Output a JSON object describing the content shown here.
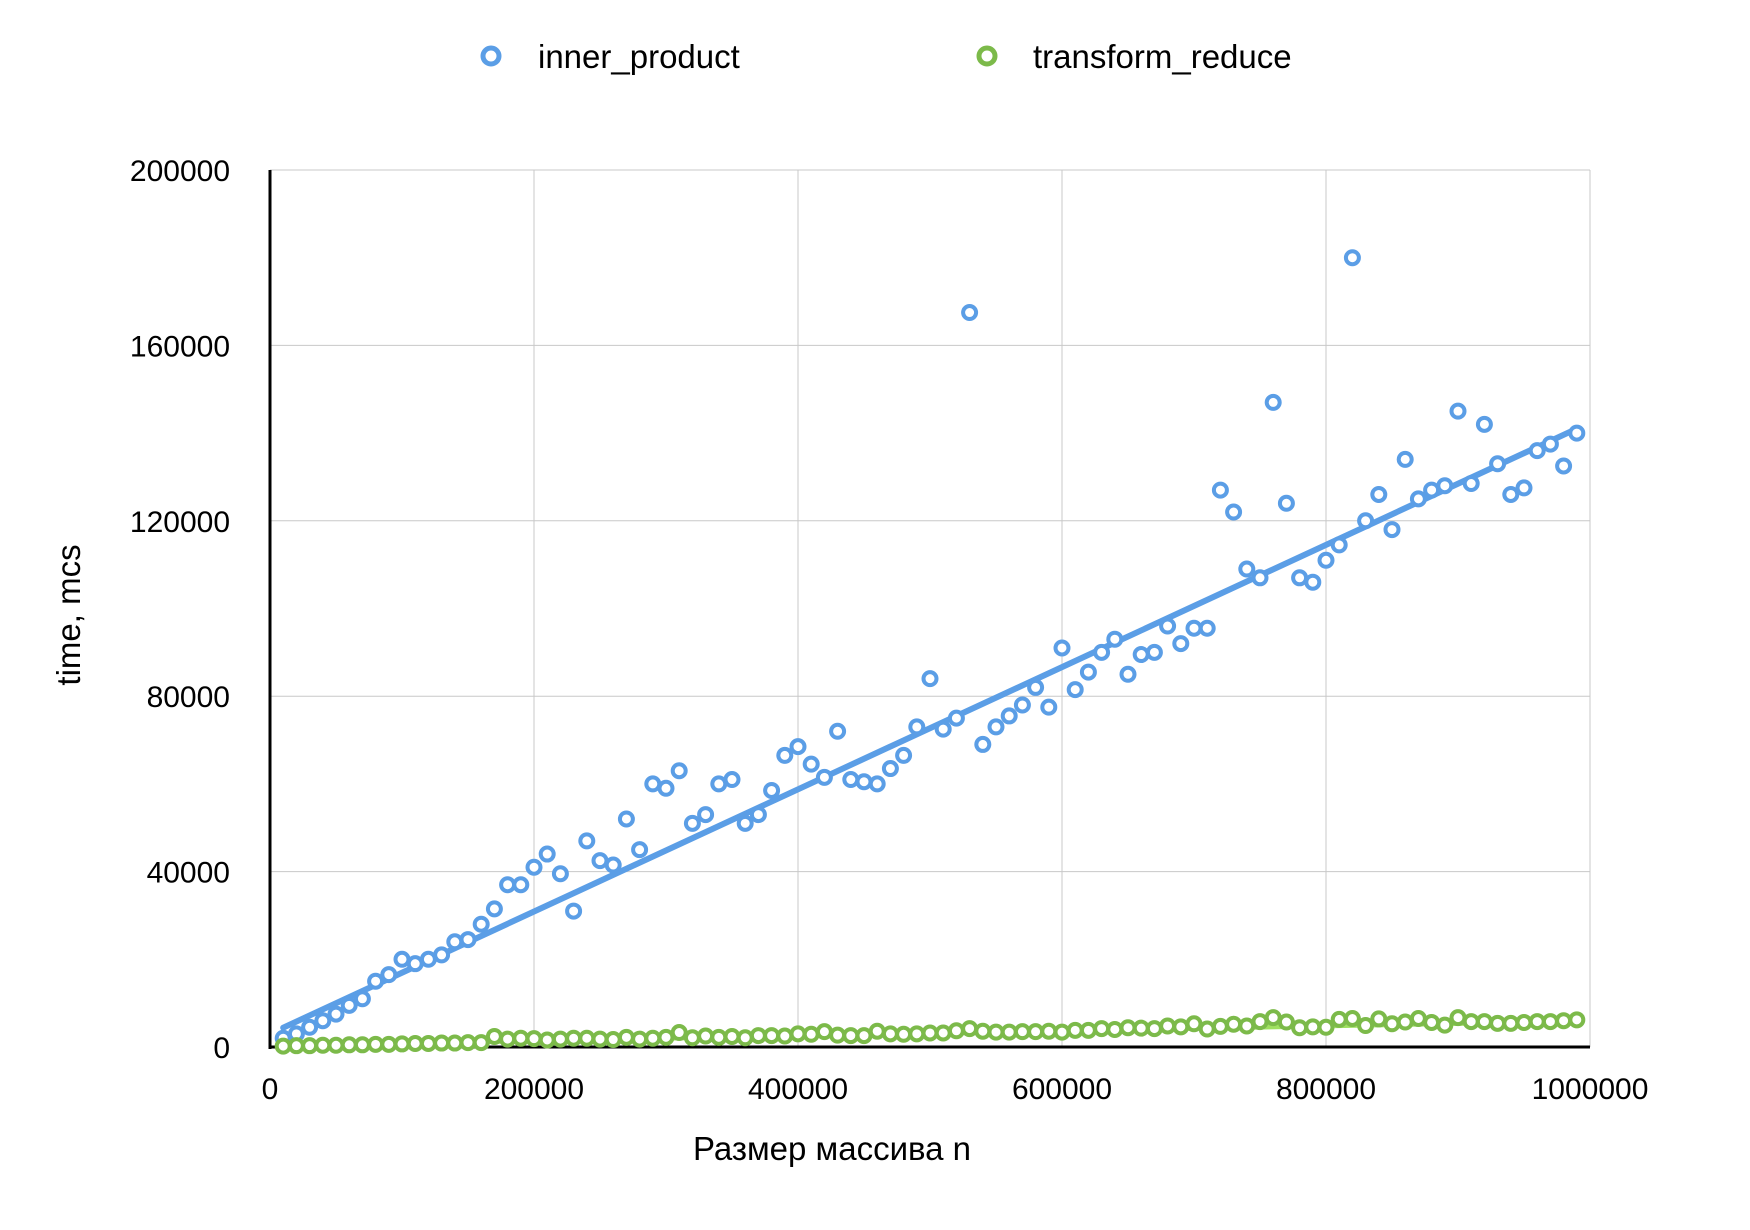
{
  "chart_data": {
    "type": "scatter",
    "xlabel": "Размер массива n",
    "ylabel": "time, mcs",
    "xlim": [
      0,
      1000000
    ],
    "ylim": [
      0,
      200000
    ],
    "x_ticks": [
      0,
      200000,
      400000,
      600000,
      800000,
      1000000
    ],
    "y_ticks": [
      0,
      40000,
      80000,
      120000,
      160000,
      200000
    ],
    "x_tick_labels": [
      "0",
      "200000",
      "400000",
      "600000",
      "800000",
      "1000000"
    ],
    "y_tick_labels": [
      "0",
      "40000",
      "80000",
      "120000",
      "160000",
      "200000"
    ],
    "grid": true,
    "legend_position": "top",
    "x": [
      10000,
      20000,
      30000,
      40000,
      50000,
      60000,
      70000,
      80000,
      90000,
      100000,
      110000,
      120000,
      130000,
      140000,
      150000,
      160000,
      170000,
      180000,
      190000,
      200000,
      210000,
      220000,
      230000,
      240000,
      250000,
      260000,
      270000,
      280000,
      290000,
      300000,
      310000,
      320000,
      330000,
      340000,
      350000,
      360000,
      370000,
      380000,
      390000,
      400000,
      410000,
      420000,
      430000,
      440000,
      450000,
      460000,
      470000,
      480000,
      490000,
      500000,
      510000,
      520000,
      530000,
      540000,
      550000,
      560000,
      570000,
      580000,
      590000,
      600000,
      610000,
      620000,
      630000,
      640000,
      650000,
      660000,
      670000,
      680000,
      690000,
      700000,
      710000,
      720000,
      730000,
      740000,
      750000,
      760000,
      770000,
      780000,
      790000,
      800000,
      810000,
      820000,
      830000,
      840000,
      850000,
      860000,
      870000,
      880000,
      890000,
      900000,
      910000,
      920000,
      930000,
      940000,
      950000,
      960000,
      970000,
      980000,
      990000
    ],
    "series": [
      {
        "name": "inner_product",
        "color": "#5b9ee6",
        "values": [
          2000,
          3000,
          4500,
          6000,
          7500,
          9500,
          11000,
          15000,
          16500,
          20000,
          19000,
          20000,
          21000,
          24000,
          24500,
          28000,
          31500,
          37000,
          37000,
          41000,
          44000,
          39500,
          31000,
          47000,
          42500,
          41500,
          52000,
          45000,
          60000,
          59000,
          63000,
          51000,
          53000,
          60000,
          61000,
          51000,
          53000,
          58500,
          66500,
          68500,
          64500,
          61500,
          72000,
          61000,
          60500,
          60000,
          63500,
          66500,
          73000,
          84000,
          72500,
          75000,
          167500,
          69000,
          73000,
          75500,
          78000,
          82000,
          77500,
          91000,
          81500,
          85500,
          90000,
          93000,
          85000,
          89500,
          90000,
          96000,
          92000,
          95500,
          95500,
          127000,
          122000,
          109000,
          107000,
          147000,
          124000,
          107000,
          106000,
          111000,
          114500,
          180000,
          120000,
          126000,
          118000,
          134000,
          125000,
          127000,
          128000,
          145000,
          128500,
          142000,
          133000,
          126000,
          127500,
          136000,
          137500,
          132500,
          140000
        ],
        "trend": [
          4400,
          141000
        ]
      },
      {
        "name": "transform_reduce",
        "color": "#7cba4a",
        "values": [
          200,
          300,
          300,
          400,
          400,
          500,
          500,
          600,
          600,
          700,
          800,
          800,
          900,
          900,
          1000,
          1000,
          2400,
          1800,
          2000,
          1900,
          1600,
          1800,
          2000,
          2000,
          1800,
          1700,
          2200,
          1800,
          2000,
          2200,
          3300,
          2100,
          2500,
          2200,
          2400,
          2100,
          2600,
          2600,
          2500,
          3000,
          2900,
          3500,
          2700,
          2600,
          2600,
          3600,
          3000,
          2900,
          3000,
          3200,
          3200,
          3700,
          4200,
          3600,
          3400,
          3400,
          3500,
          3500,
          3600,
          3400,
          3800,
          3800,
          4200,
          4000,
          4400,
          4300,
          4200,
          4800,
          4600,
          5300,
          4100,
          4700,
          5200,
          4800,
          5800,
          6700,
          5700,
          4400,
          4600,
          4500,
          6300,
          6500,
          4900,
          6400,
          5300,
          5700,
          6500,
          5600,
          5000,
          6700,
          5800,
          5800,
          5400,
          5400,
          5600,
          5800,
          5800,
          6000,
          6200
        ],
        "trend": [
          500,
          6000
        ]
      }
    ]
  }
}
